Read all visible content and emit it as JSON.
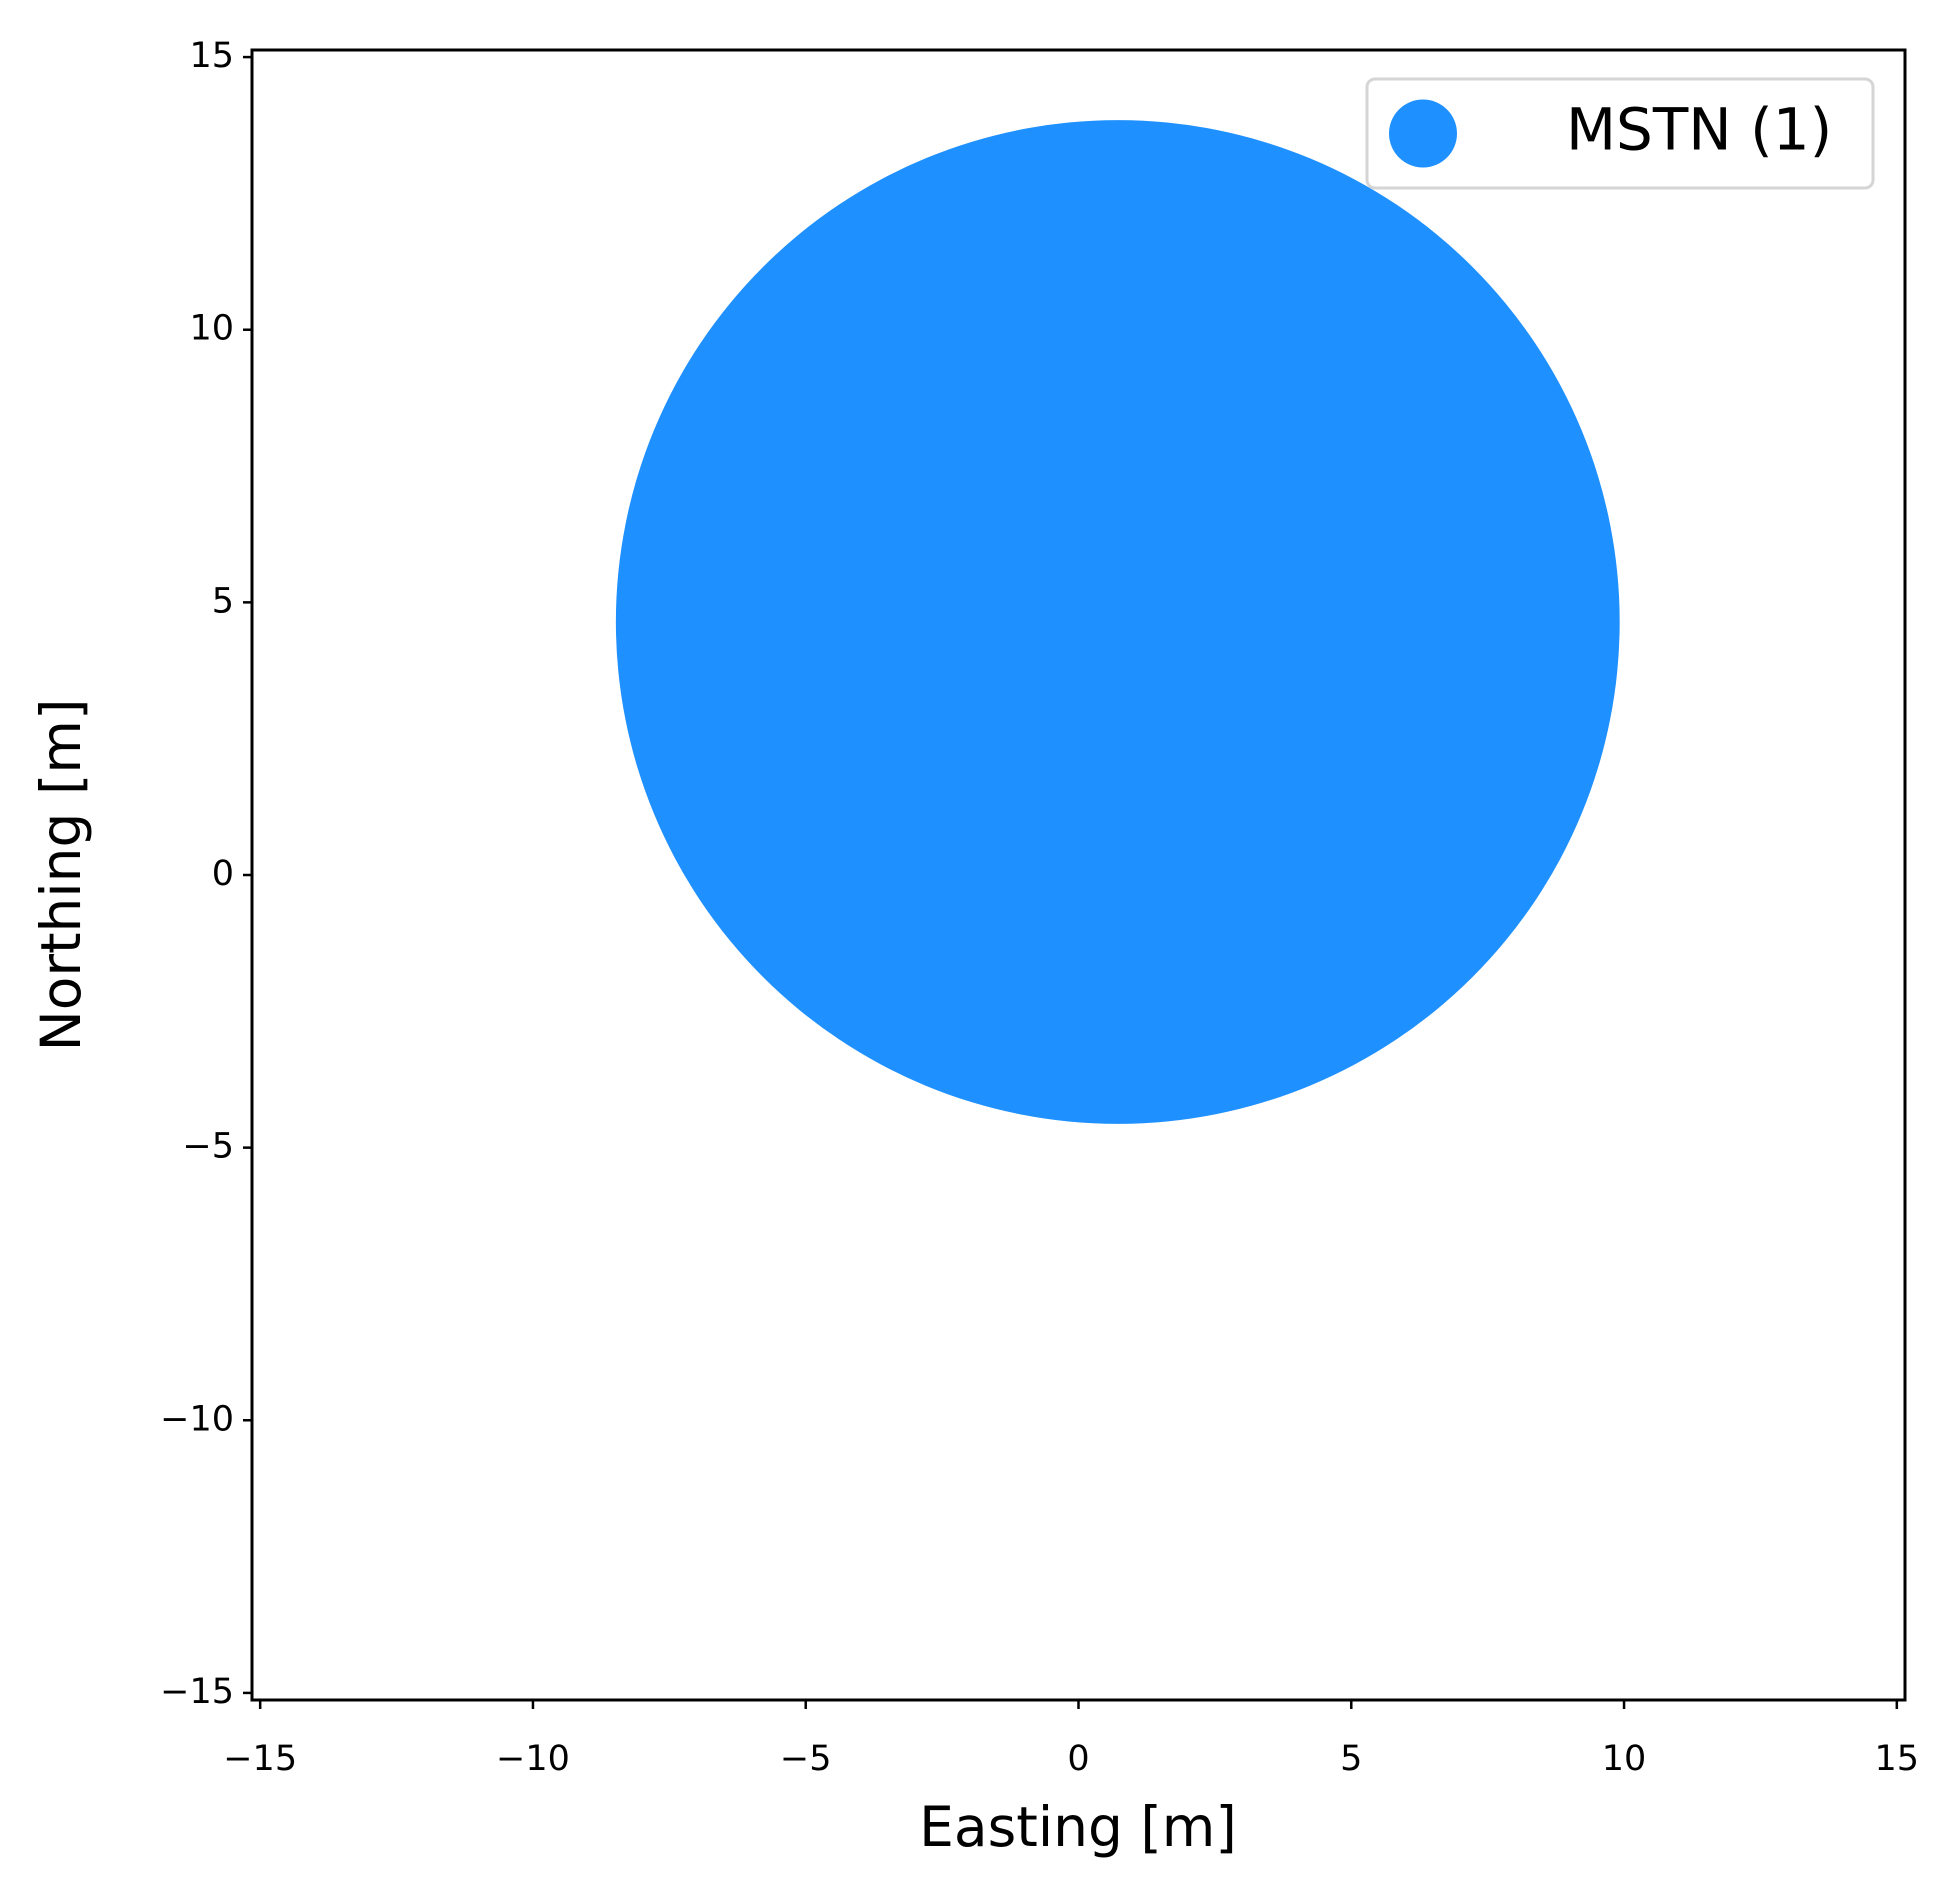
{
  "chart_data": {
    "type": "scatter",
    "xlabel": "Easting [m]",
    "ylabel": "Northing [m]",
    "series": [
      {
        "name": "MSTN (1)",
        "color": "#1e90ff",
        "x": [
          0.72
        ],
        "values": [
          4.64
        ],
        "radius": [
          9.2
        ]
      }
    ],
    "xlim": [
      -15.15,
      15.15
    ],
    "ylim": [
      -15.13,
      15.13
    ],
    "xticks": [
      {
        "value": -15,
        "label": "−15"
      },
      {
        "value": -10,
        "label": "−10"
      },
      {
        "value": -5,
        "label": "−5"
      },
      0,
      5,
      10,
      15
    ],
    "yticks": [
      {
        "value": -15,
        "label": "−15"
      },
      {
        "value": -10,
        "label": "−10"
      },
      {
        "value": -5,
        "label": "−5"
      },
      0,
      5,
      10,
      15
    ],
    "grid": false,
    "legend": "upper right"
  }
}
